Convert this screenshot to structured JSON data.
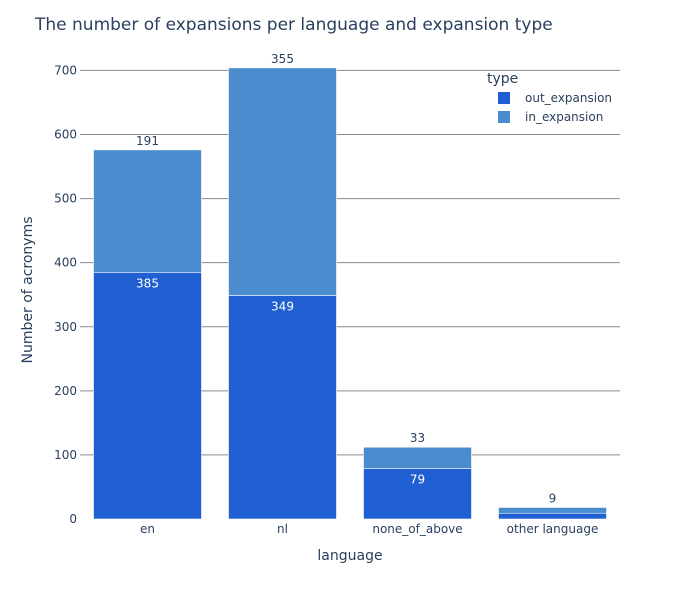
{
  "chart_data": {
    "type": "bar",
    "barmode": "stack",
    "title": "The number of expansions per language and expansion type",
    "xlabel": "language",
    "ylabel": "Number of acronyms",
    "categories": [
      "en",
      "nl",
      "none_of_above",
      "other language"
    ],
    "ylim": [
      0,
      735
    ],
    "yticks": [
      0,
      100,
      200,
      300,
      400,
      500,
      600,
      700
    ],
    "grid": true,
    "legend": {
      "title": "type",
      "placement": "top-right"
    },
    "series": [
      {
        "name": "out_expansion",
        "values": [
          385,
          349,
          79,
          9
        ],
        "labels": [
          "385",
          "349",
          "79",
          ""
        ],
        "color": "#1f5fd1",
        "label_position": "inside"
      },
      {
        "name": "in_expansion",
        "values": [
          191,
          355,
          33,
          9
        ],
        "labels": [
          "191",
          "355",
          "33",
          "9"
        ],
        "color": "#4a8ccd",
        "label_position": "outside"
      }
    ]
  }
}
